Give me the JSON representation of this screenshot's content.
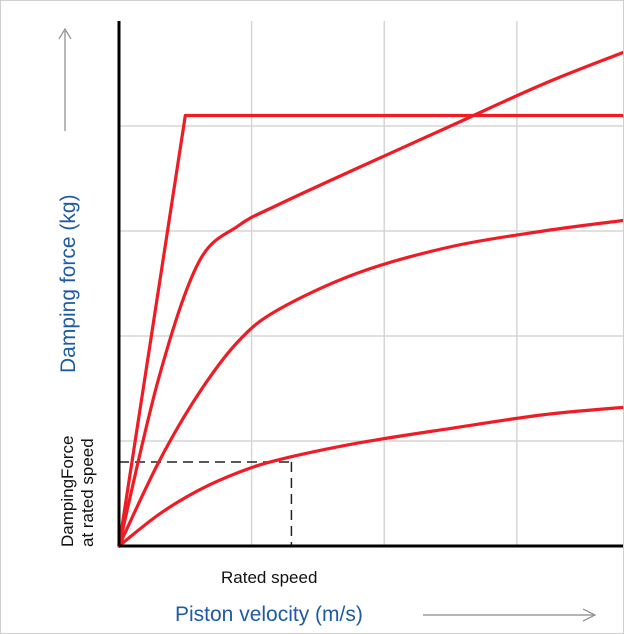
{
  "chart_data": {
    "type": "line",
    "title": "",
    "xlabel": "Piston velocity (m/s)",
    "ylabel": "Damping force (kg)",
    "xlim": [
      0,
      3.8
    ],
    "ylim": [
      0,
      5
    ],
    "grid": true,
    "annotations": {
      "x_marker_label": "Rated speed",
      "y_marker_label_line1": "DampingForce",
      "y_marker_label_line2": "at rated speed",
      "rated_speed": 1.3,
      "damping_force_at_rated_speed": 0.8
    },
    "series": [
      {
        "x": [
          0,
          0.5,
          3.8
        ],
        "y": [
          0,
          4.1,
          4.1
        ]
      },
      {
        "x": [
          0,
          0.3,
          0.6,
          0.9,
          1.2,
          1.8,
          2.5,
          3.2,
          3.8
        ],
        "y": [
          0,
          1.6,
          2.7,
          3.05,
          3.25,
          3.6,
          4.0,
          4.4,
          4.7
        ]
      },
      {
        "x": [
          0,
          0.3,
          0.6,
          0.9,
          1.2,
          1.8,
          2.5,
          3.2,
          3.8
        ],
        "y": [
          0,
          0.8,
          1.45,
          1.95,
          2.25,
          2.6,
          2.85,
          3.0,
          3.1
        ]
      },
      {
        "x": [
          0,
          0.3,
          0.6,
          0.9,
          1.2,
          1.8,
          2.5,
          3.2,
          3.8
        ],
        "y": [
          0,
          0.3,
          0.53,
          0.7,
          0.82,
          0.98,
          1.12,
          1.25,
          1.32
        ]
      }
    ],
    "colors": {
      "series": "#ee1c24",
      "axis": "#000000",
      "grid": "#d6d6d6",
      "dashed": "#222222",
      "label_blue": "#1f5aa6"
    }
  }
}
